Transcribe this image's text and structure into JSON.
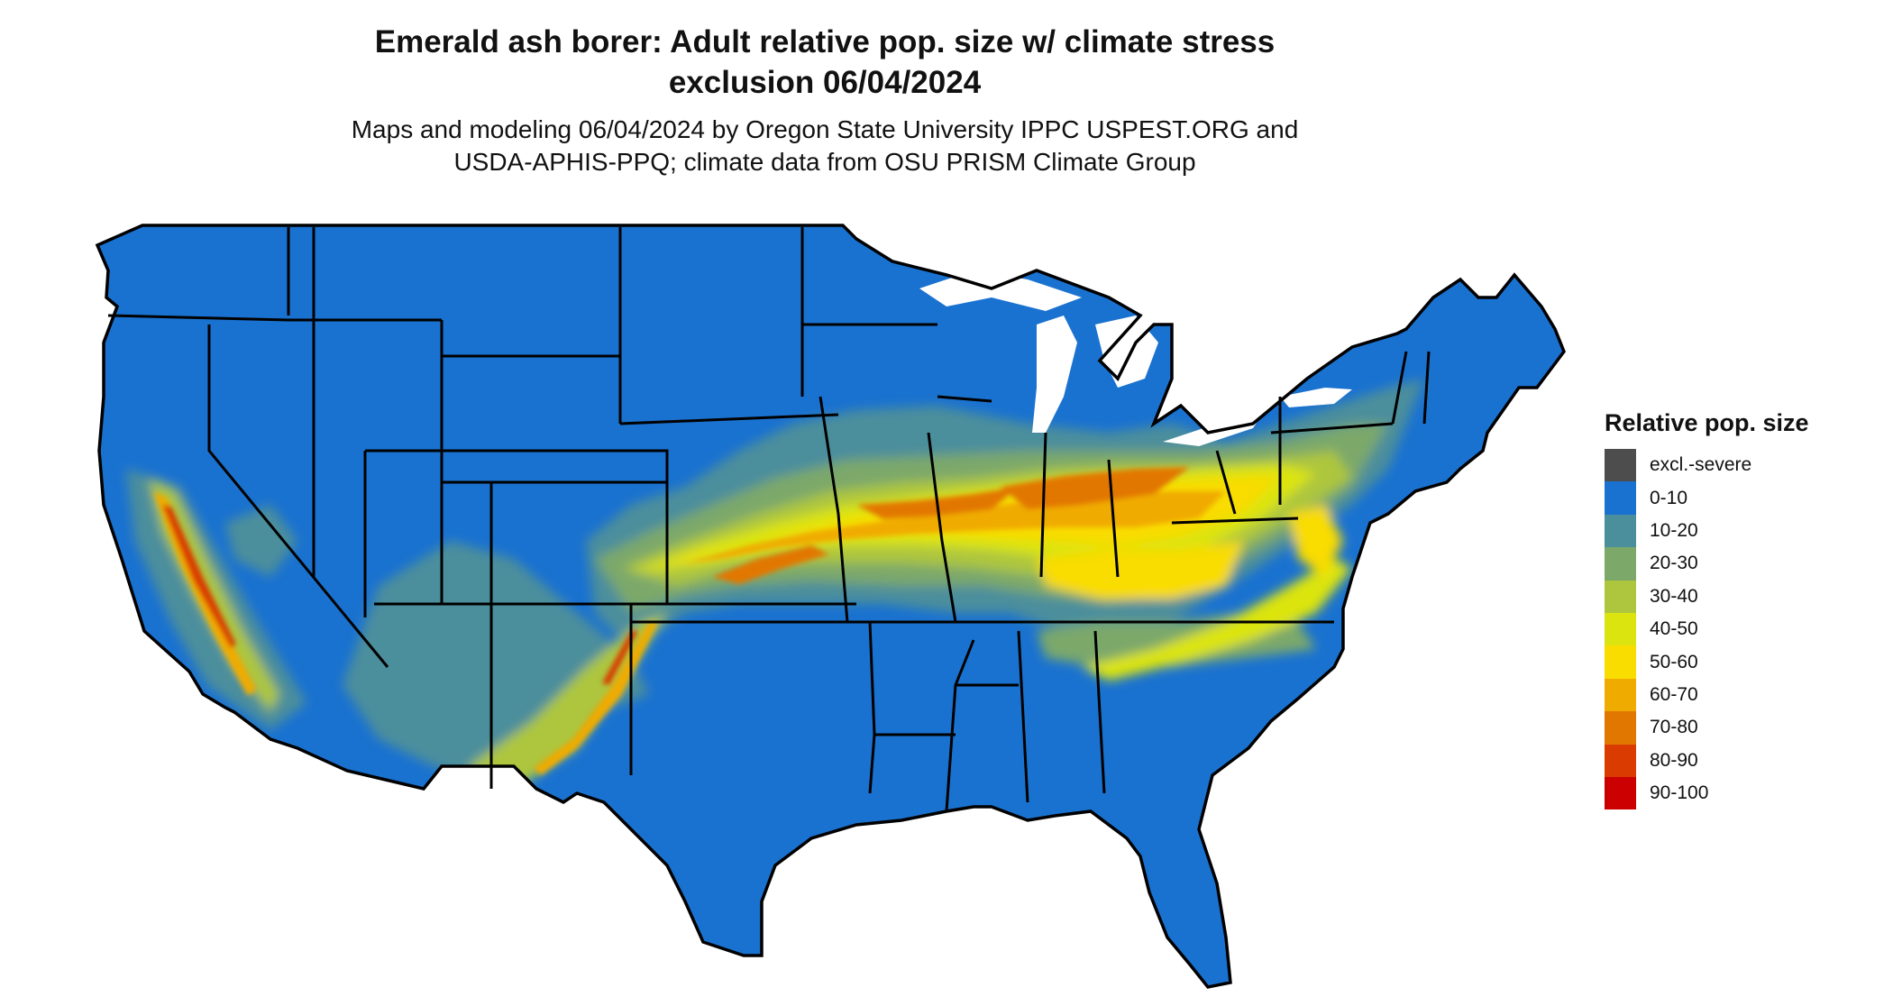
{
  "title": {
    "line1": "Emerald ash borer: Adult relative pop. size w/ climate stress",
    "line2": "exclusion 06/04/2024"
  },
  "subtitle": {
    "line1": "Maps and modeling 06/04/2024 by Oregon State University IPPC USPEST.ORG and",
    "line2": "USDA-APHIS-PPQ; climate data from OSU PRISM Climate Group"
  },
  "legend": {
    "title": "Relative pop. size",
    "items": [
      {
        "label": "excl.-severe",
        "color": "#4d4d4d"
      },
      {
        "label": "0-10",
        "color": "#1a72d0"
      },
      {
        "label": "10-20",
        "color": "#4b8e9c"
      },
      {
        "label": "20-30",
        "color": "#7ca86a"
      },
      {
        "label": "30-40",
        "color": "#adc63e"
      },
      {
        "label": "40-50",
        "color": "#dbe40f"
      },
      {
        "label": "50-60",
        "color": "#f9dc00"
      },
      {
        "label": "60-70",
        "color": "#f0ab00"
      },
      {
        "label": "70-80",
        "color": "#e27700"
      },
      {
        "label": "80-90",
        "color": "#d93b00"
      },
      {
        "label": "90-100",
        "color": "#cc0000"
      }
    ]
  },
  "map": {
    "region": "Contiguous United States",
    "base_class": "0-10"
  }
}
